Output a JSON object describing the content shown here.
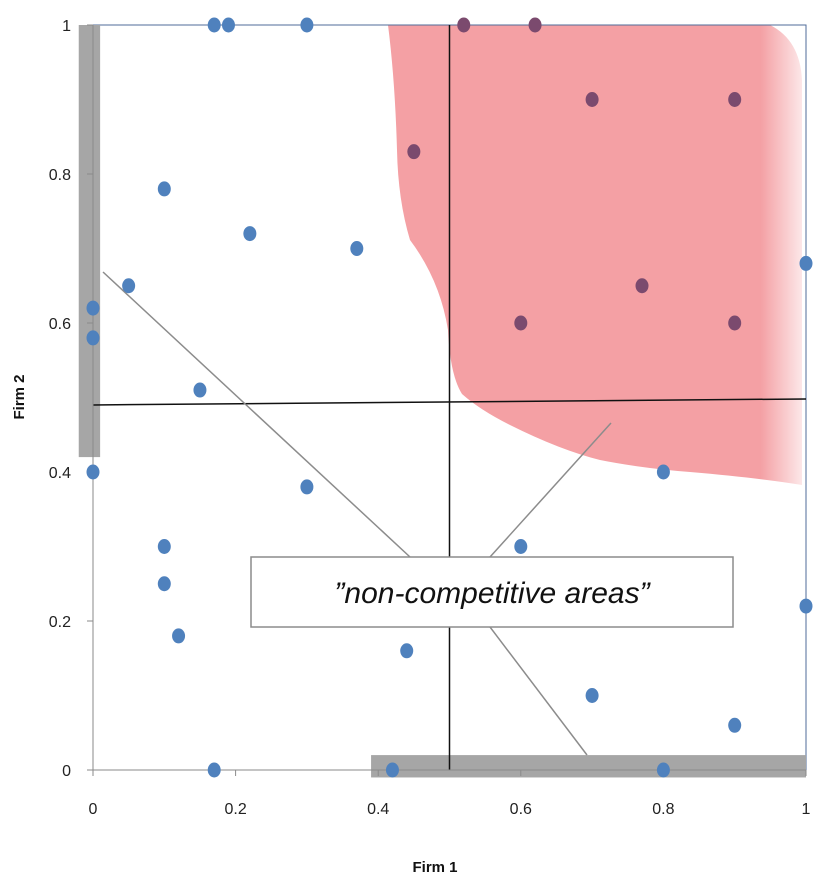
{
  "chart_data": {
    "type": "scatter",
    "title": "",
    "xlabel": "Firm 1",
    "ylabel": "Firm 2",
    "xlim": [
      0,
      1
    ],
    "ylim": [
      0,
      1
    ],
    "x_ticks": [
      0,
      0.2,
      0.4,
      0.6,
      0.8,
      1
    ],
    "y_ticks": [
      0,
      0.2,
      0.4,
      0.6,
      0.8,
      1
    ],
    "x_tick_labels": [
      "0",
      "0.2",
      "0.4",
      "0.6",
      "0.8",
      "1"
    ],
    "y_tick_labels": [
      "0",
      "0.2",
      "0.4",
      "0.6",
      "0.8",
      "1"
    ],
    "grid": false,
    "annotation": "”non-competitive areas”",
    "colors": {
      "point": "#4f81bd",
      "point_in_region": "#7b4a6e",
      "region_fill": "#f4a0a4",
      "non_competitive_band": "#a6a6a6",
      "threshold_lines": "#111111",
      "pointer_lines": "#8c8c8c",
      "plot_border": "#4f6b99"
    },
    "threshold_lines": {
      "x": 0.5,
      "y": 0.49
    },
    "non_competitive_bands": [
      {
        "x_range": [
          -0.02,
          0.01
        ],
        "y_range": [
          0.42,
          1.0
        ]
      },
      {
        "x_range": [
          0.39,
          1.0
        ],
        "y_range": [
          -0.01,
          0.02
        ]
      }
    ],
    "points": [
      {
        "x": 0.17,
        "y": 1.0
      },
      {
        "x": 0.19,
        "y": 1.0
      },
      {
        "x": 0.3,
        "y": 1.0
      },
      {
        "x": 0.52,
        "y": 1.0,
        "in_region": true
      },
      {
        "x": 0.62,
        "y": 1.0,
        "in_region": true
      },
      {
        "x": 0.7,
        "y": 0.9,
        "in_region": true
      },
      {
        "x": 0.9,
        "y": 0.9,
        "in_region": true
      },
      {
        "x": 0.45,
        "y": 0.83,
        "in_region": true
      },
      {
        "x": 0.1,
        "y": 0.78
      },
      {
        "x": 0.22,
        "y": 0.72
      },
      {
        "x": 0.37,
        "y": 0.7
      },
      {
        "x": 1.0,
        "y": 0.68
      },
      {
        "x": 0.05,
        "y": 0.65
      },
      {
        "x": 0.77,
        "y": 0.65,
        "in_region": true
      },
      {
        "x": 0.0,
        "y": 0.62
      },
      {
        "x": 0.6,
        "y": 0.6,
        "in_region": true
      },
      {
        "x": 0.9,
        "y": 0.6,
        "in_region": true
      },
      {
        "x": 0.0,
        "y": 0.58
      },
      {
        "x": 0.15,
        "y": 0.51
      },
      {
        "x": 0.0,
        "y": 0.4
      },
      {
        "x": 0.8,
        "y": 0.4
      },
      {
        "x": 0.3,
        "y": 0.38
      },
      {
        "x": 0.1,
        "y": 0.3
      },
      {
        "x": 0.6,
        "y": 0.3
      },
      {
        "x": 0.1,
        "y": 0.25
      },
      {
        "x": 1.0,
        "y": 0.22
      },
      {
        "x": 0.12,
        "y": 0.18
      },
      {
        "x": 0.44,
        "y": 0.16
      },
      {
        "x": 0.7,
        "y": 0.1
      },
      {
        "x": 0.9,
        "y": 0.06
      },
      {
        "x": 0.17,
        "y": 0.0
      },
      {
        "x": 0.42,
        "y": 0.0
      },
      {
        "x": 0.8,
        "y": 0.0
      }
    ]
  }
}
